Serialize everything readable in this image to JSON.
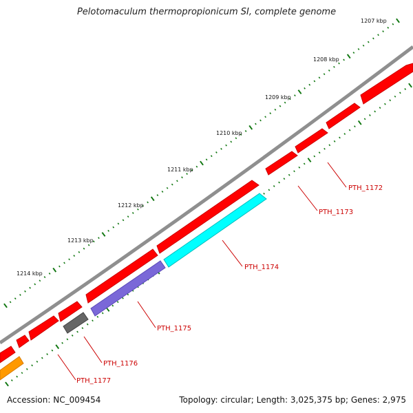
{
  "title": "Pelotomaculum thermopropionicum SI, complete genome",
  "footer": {
    "accession": "Accession: NC_009454",
    "summary": "Topology: circular; Length: 3,025,375 bp; Genes: 2,975"
  },
  "ticks": [
    "1207 kbp",
    "1208 kbp",
    "1209 kbp",
    "1210 kbp",
    "1211 kbp",
    "1212 kbp",
    "1213 kbp",
    "1214 kbp"
  ],
  "genes": [
    {
      "id": "PTH_1172",
      "color": "#ff0000",
      "strand": "forward"
    },
    {
      "id": "PTH_1173",
      "color": "#ff0000",
      "strand": "forward"
    },
    {
      "id": "PTH_1174",
      "color": "#00ffff",
      "strand": "reverse"
    },
    {
      "id": "PTH_1175",
      "color": "#7a68d8",
      "strand": "reverse"
    },
    {
      "id": "PTH_1176",
      "color": "#666666",
      "strand": "reverse"
    },
    {
      "id": "PTH_1177",
      "color": "#ff9900",
      "strand": "reverse"
    }
  ],
  "colors": {
    "backbone": "#8a8a8a",
    "tick": "#117711",
    "forward_gene": "#ff0000",
    "label": "#cc0000"
  }
}
